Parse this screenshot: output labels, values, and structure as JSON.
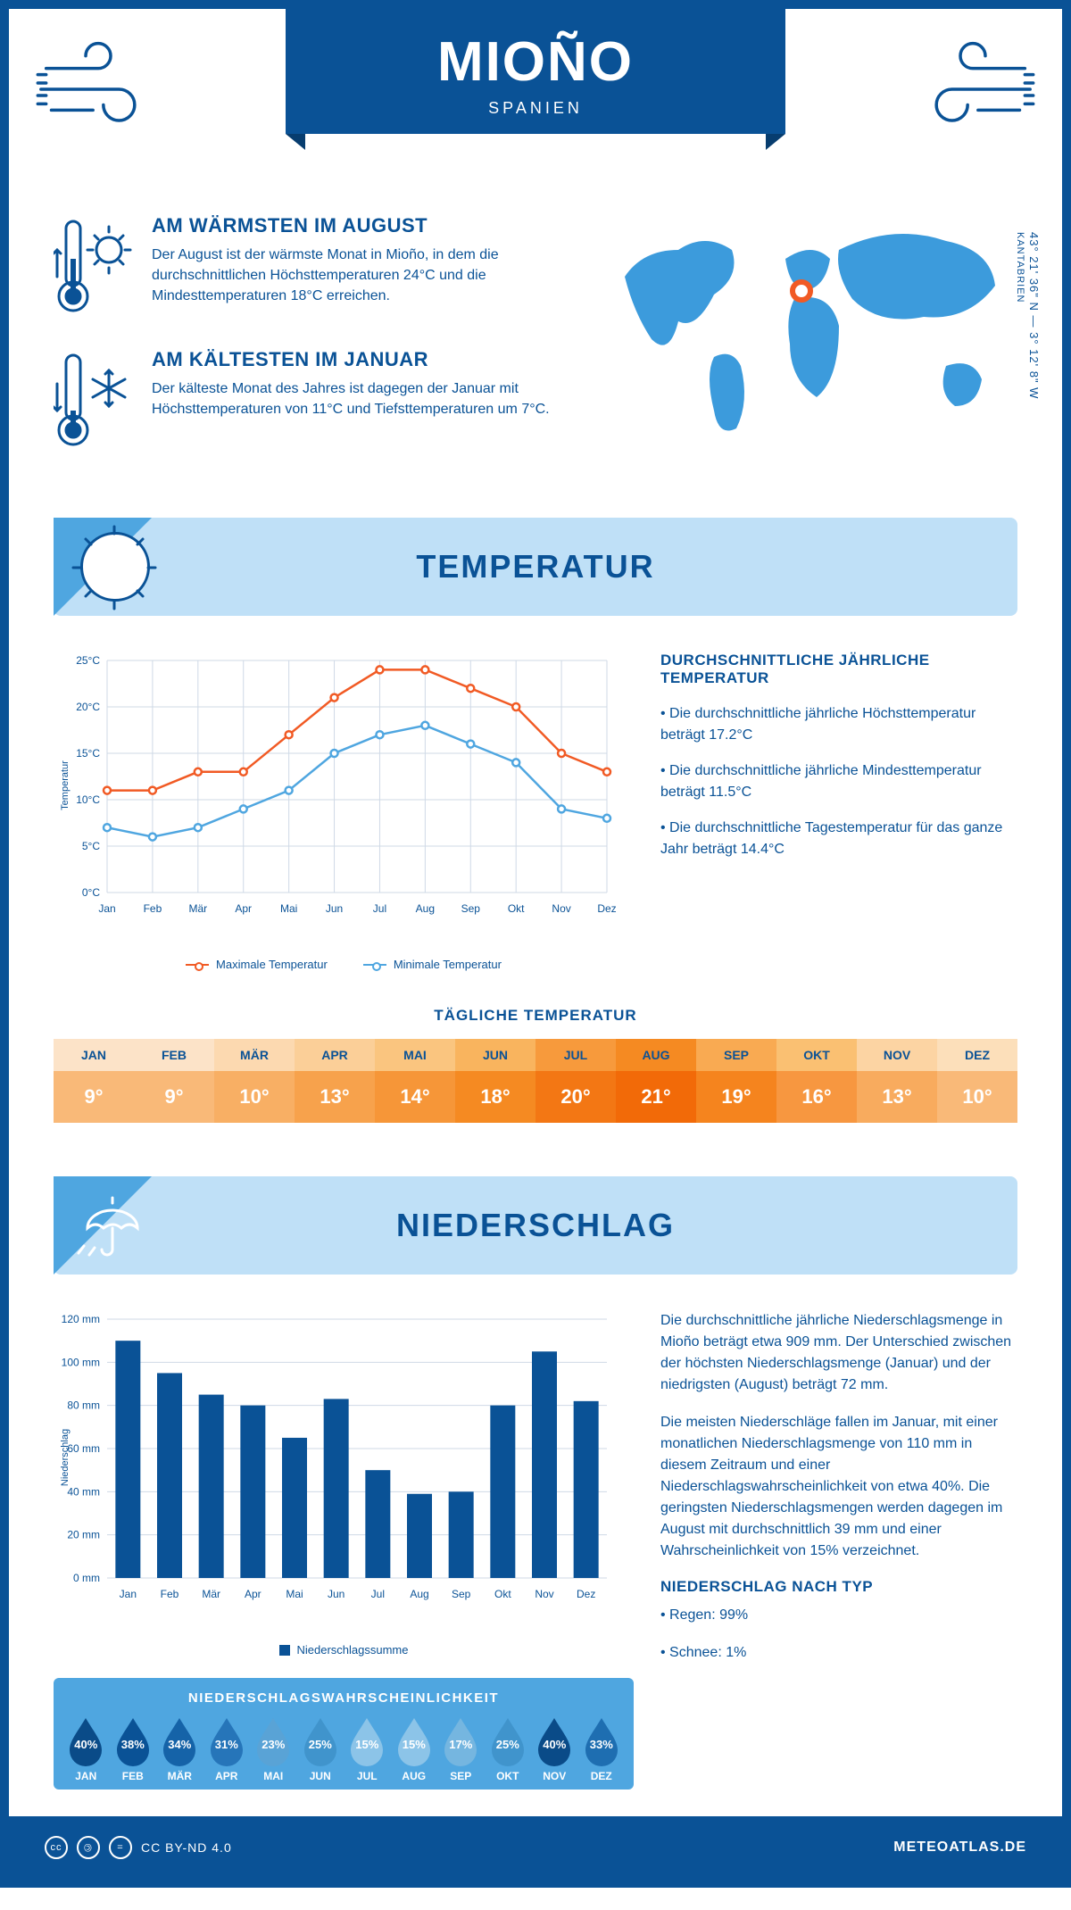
{
  "header": {
    "city": "MIOÑO",
    "country": "SPANIEN",
    "coords_line1": "43° 21' 36\" N — 3° 12' 8\" W",
    "coords_line2": "KANTABRIEN"
  },
  "facts": {
    "warm": {
      "title": "AM WÄRMSTEN IM AUGUST",
      "body": "Der August ist der wärmste Monat in Mioño, in dem die durchschnittlichen Höchsttemperaturen 24°C und die Mindesttemperaturen 18°C erreichen."
    },
    "cold": {
      "title": "AM KÄLTESTEN IM JANUAR",
      "body": "Der kälteste Monat des Jahres ist dagegen der Januar mit Höchsttemperaturen von 11°C und Tiefsttemperaturen um 7°C."
    }
  },
  "months": [
    "Jan",
    "Feb",
    "Mär",
    "Apr",
    "Mai",
    "Jun",
    "Jul",
    "Aug",
    "Sep",
    "Okt",
    "Nov",
    "Dez"
  ],
  "months_upper": [
    "JAN",
    "FEB",
    "MÄR",
    "APR",
    "MAI",
    "JUN",
    "JUL",
    "AUG",
    "SEP",
    "OKT",
    "NOV",
    "DEZ"
  ],
  "temperature": {
    "section_title": "TEMPERATUR",
    "chart": {
      "type": "line",
      "y_label": "Temperatur",
      "y_min": 0,
      "y_max": 25,
      "y_step": 5,
      "y_suffix": "°C",
      "series_max": {
        "label": "Maximale Temperatur",
        "color": "#f15a24",
        "values": [
          11,
          11,
          13,
          13,
          17,
          21,
          24,
          24,
          22,
          20,
          15,
          13
        ]
      },
      "series_min": {
        "label": "Minimale Temperatur",
        "color": "#4fa6e0",
        "values": [
          7,
          6,
          7,
          9,
          11,
          15,
          17,
          18,
          16,
          14,
          9,
          8
        ]
      },
      "grid_color": "#cfd9e6",
      "axis_color": "#0a5296",
      "label_fontsize": 12
    },
    "info_title": "DURCHSCHNITTLICHE JÄHRLICHE TEMPERATUR",
    "info_points": [
      "• Die durchschnittliche jährliche Höchsttemperatur beträgt 17.2°C",
      "• Die durchschnittliche jährliche Mindesttemperatur beträgt 11.5°C",
      "• Die durchschnittliche Tagestemperatur für das ganze Jahr beträgt 14.4°C"
    ],
    "daily_title": "TÄGLICHE TEMPERATUR",
    "daily_values": [
      "9°",
      "9°",
      "10°",
      "13°",
      "14°",
      "18°",
      "20°",
      "21°",
      "19°",
      "16°",
      "13°",
      "10°"
    ],
    "daily_colors": {
      "month_bg": [
        "#fce3c8",
        "#fce3c8",
        "#fcd9b0",
        "#fbcf98",
        "#fac57f",
        "#f9b45e",
        "#f79a3c",
        "#f58a22",
        "#f9aa52",
        "#fac072",
        "#fcd4a3",
        "#fcdfba"
      ],
      "value_bg": [
        "#f9b978",
        "#f9b978",
        "#f8af64",
        "#f7a24c",
        "#f69638",
        "#f58a22",
        "#f37714",
        "#f26a08",
        "#f5841e",
        "#f79740",
        "#f8ab5e",
        "#f9b978"
      ]
    }
  },
  "precip": {
    "section_title": "NIEDERSCHLAG",
    "chart": {
      "type": "bar",
      "y_label": "Niederschlag",
      "y_min": 0,
      "y_max": 120,
      "y_step": 20,
      "y_suffix": " mm",
      "bar_color": "#0a5296",
      "grid_color": "#cfd9e6",
      "legend": "Niederschlagssumme",
      "values": [
        110,
        95,
        85,
        80,
        65,
        83,
        50,
        39,
        40,
        80,
        105,
        82
      ]
    },
    "para1": "Die durchschnittliche jährliche Niederschlagsmenge in Mioño beträgt etwa 909 mm. Der Unterschied zwischen der höchsten Niederschlagsmenge (Januar) und der niedrigsten (August) beträgt 72 mm.",
    "para2": "Die meisten Niederschläge fallen im Januar, mit einer monatlichen Niederschlagsmenge von 110 mm in diesem Zeitraum und einer Niederschlagswahrscheinlichkeit von etwa 40%. Die geringsten Niederschlagsmengen werden dagegen im August mit durchschnittlich 39 mm und einer Wahrscheinlichkeit von 15% verzeichnet.",
    "type_title": "NIEDERSCHLAG NACH TYP",
    "type_points": [
      "• Regen: 99%",
      "• Schnee: 1%"
    ],
    "prob_title": "NIEDERSCHLAGSWAHRSCHEINLICHKEIT",
    "prob_values": [
      "40%",
      "38%",
      "34%",
      "31%",
      "23%",
      "25%",
      "15%",
      "15%",
      "17%",
      "25%",
      "40%",
      "33%"
    ],
    "prob_colors": [
      "#0a4b88",
      "#0a5296",
      "#1563a8",
      "#2675b9",
      "#59a3d6",
      "#4094cc",
      "#8cc4e8",
      "#8cc4e8",
      "#75b6e0",
      "#4094cc",
      "#0a4b88",
      "#1e6eb1"
    ]
  },
  "footer": {
    "license": "CC BY-ND 4.0",
    "site": "METEOATLAS.DE"
  },
  "colors": {
    "primary": "#0a5296",
    "light": "#bfe0f7",
    "mid": "#4fa6e0",
    "orange": "#f15a24"
  }
}
